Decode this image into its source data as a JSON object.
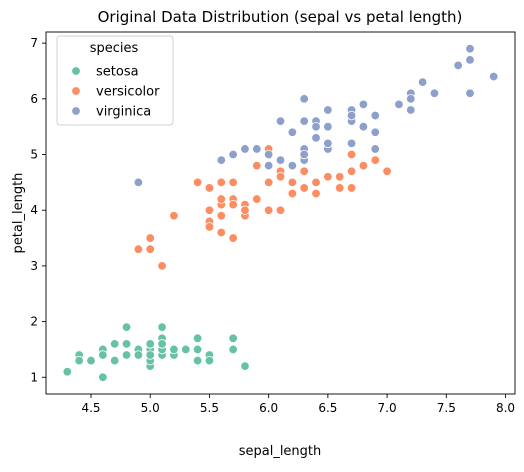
{
  "chart_data": {
    "type": "scatter",
    "title": "Original Data Distribution (sepal vs petal length)",
    "xlabel": "sepal_length",
    "ylabel": "petal_length",
    "xlim": [
      4.12,
      8.08
    ],
    "ylim": [
      0.7,
      7.2
    ],
    "xticks": [
      4.5,
      5.0,
      5.5,
      6.0,
      6.5,
      7.0,
      7.5,
      8.0
    ],
    "xtick_labels": [
      "4.5",
      "5.0",
      "5.5",
      "6.0",
      "6.5",
      "7.0",
      "7.5",
      "8.0"
    ],
    "yticks": [
      1,
      2,
      3,
      4,
      5,
      6,
      7
    ],
    "ytick_labels": [
      "1",
      "2",
      "3",
      "4",
      "5",
      "6",
      "7"
    ],
    "grid": false,
    "legend": {
      "title": "species",
      "placement": "top-left"
    },
    "series": [
      {
        "name": "setosa",
        "color": "#66c2a5",
        "points": [
          [
            5.1,
            1.4
          ],
          [
            4.9,
            1.4
          ],
          [
            4.7,
            1.3
          ],
          [
            4.6,
            1.5
          ],
          [
            5.0,
            1.4
          ],
          [
            5.4,
            1.7
          ],
          [
            4.6,
            1.4
          ],
          [
            5.0,
            1.5
          ],
          [
            4.4,
            1.4
          ],
          [
            4.9,
            1.5
          ],
          [
            5.4,
            1.5
          ],
          [
            4.8,
            1.6
          ],
          [
            4.8,
            1.4
          ],
          [
            4.3,
            1.1
          ],
          [
            5.8,
            1.2
          ],
          [
            5.7,
            1.5
          ],
          [
            5.4,
            1.3
          ],
          [
            5.1,
            1.4
          ],
          [
            5.7,
            1.7
          ],
          [
            5.1,
            1.5
          ],
          [
            5.4,
            1.7
          ],
          [
            5.1,
            1.5
          ],
          [
            4.6,
            1.0
          ],
          [
            5.1,
            1.7
          ],
          [
            4.8,
            1.9
          ],
          [
            5.0,
            1.6
          ],
          [
            5.0,
            1.6
          ],
          [
            5.2,
            1.5
          ],
          [
            5.2,
            1.4
          ],
          [
            4.7,
            1.6
          ],
          [
            4.8,
            1.6
          ],
          [
            5.4,
            1.5
          ],
          [
            5.2,
            1.5
          ],
          [
            5.5,
            1.4
          ],
          [
            4.9,
            1.5
          ],
          [
            5.0,
            1.2
          ],
          [
            5.5,
            1.3
          ],
          [
            4.9,
            1.4
          ],
          [
            4.4,
            1.3
          ],
          [
            5.1,
            1.5
          ],
          [
            5.0,
            1.3
          ],
          [
            4.5,
            1.3
          ],
          [
            4.4,
            1.3
          ],
          [
            5.0,
            1.6
          ],
          [
            5.1,
            1.9
          ],
          [
            4.8,
            1.4
          ],
          [
            5.1,
            1.6
          ],
          [
            4.6,
            1.4
          ],
          [
            5.3,
            1.5
          ],
          [
            5.0,
            1.4
          ]
        ]
      },
      {
        "name": "versicolor",
        "color": "#fc8d62",
        "points": [
          [
            7.0,
            4.7
          ],
          [
            6.4,
            4.5
          ],
          [
            6.9,
            4.9
          ],
          [
            5.5,
            4.0
          ],
          [
            6.5,
            4.6
          ],
          [
            5.7,
            4.5
          ],
          [
            6.3,
            4.7
          ],
          [
            4.9,
            3.3
          ],
          [
            6.6,
            4.6
          ],
          [
            5.2,
            3.9
          ],
          [
            5.0,
            3.5
          ],
          [
            5.9,
            4.2
          ],
          [
            6.0,
            4.0
          ],
          [
            6.1,
            4.7
          ],
          [
            5.6,
            3.6
          ],
          [
            6.7,
            4.4
          ],
          [
            5.6,
            4.5
          ],
          [
            5.8,
            4.1
          ],
          [
            6.2,
            4.5
          ],
          [
            5.6,
            3.9
          ],
          [
            5.9,
            4.8
          ],
          [
            6.1,
            4.0
          ],
          [
            6.3,
            4.9
          ],
          [
            6.1,
            4.7
          ],
          [
            6.4,
            4.3
          ],
          [
            6.6,
            4.4
          ],
          [
            6.8,
            4.8
          ],
          [
            6.7,
            5.0
          ],
          [
            6.0,
            4.5
          ],
          [
            5.7,
            3.5
          ],
          [
            5.5,
            3.8
          ],
          [
            5.5,
            3.7
          ],
          [
            5.8,
            3.9
          ],
          [
            6.0,
            5.1
          ],
          [
            5.4,
            4.5
          ],
          [
            6.0,
            4.5
          ],
          [
            6.7,
            4.7
          ],
          [
            6.3,
            4.4
          ],
          [
            5.6,
            4.1
          ],
          [
            5.5,
            4.0
          ],
          [
            5.5,
            4.4
          ],
          [
            6.1,
            4.6
          ],
          [
            5.8,
            4.0
          ],
          [
            5.0,
            3.3
          ],
          [
            5.6,
            4.2
          ],
          [
            5.7,
            4.2
          ],
          [
            5.7,
            4.2
          ],
          [
            6.2,
            4.3
          ],
          [
            5.1,
            3.0
          ],
          [
            5.7,
            4.1
          ]
        ]
      },
      {
        "name": "virginica",
        "color": "#8da0cb",
        "points": [
          [
            6.3,
            6.0
          ],
          [
            5.8,
            5.1
          ],
          [
            7.1,
            5.9
          ],
          [
            6.3,
            5.6
          ],
          [
            6.5,
            5.8
          ],
          [
            7.6,
            6.6
          ],
          [
            4.9,
            4.5
          ],
          [
            7.3,
            6.3
          ],
          [
            6.7,
            5.8
          ],
          [
            7.2,
            6.1
          ],
          [
            6.5,
            5.1
          ],
          [
            6.4,
            5.3
          ],
          [
            6.8,
            5.5
          ],
          [
            5.7,
            5.0
          ],
          [
            5.8,
            5.1
          ],
          [
            6.4,
            5.3
          ],
          [
            6.5,
            5.5
          ],
          [
            7.7,
            6.7
          ],
          [
            7.7,
            6.9
          ],
          [
            6.0,
            5.0
          ],
          [
            6.9,
            5.7
          ],
          [
            5.6,
            4.9
          ],
          [
            7.7,
            6.7
          ],
          [
            6.3,
            4.9
          ],
          [
            6.7,
            5.7
          ],
          [
            7.2,
            6.0
          ],
          [
            6.2,
            4.8
          ],
          [
            6.1,
            4.9
          ],
          [
            6.4,
            5.6
          ],
          [
            7.2,
            5.8
          ],
          [
            7.4,
            6.1
          ],
          [
            7.9,
            6.4
          ],
          [
            6.4,
            5.6
          ],
          [
            6.3,
            5.1
          ],
          [
            6.1,
            5.6
          ],
          [
            7.7,
            6.1
          ],
          [
            6.3,
            5.6
          ],
          [
            6.4,
            5.5
          ],
          [
            6.0,
            4.8
          ],
          [
            6.9,
            5.4
          ],
          [
            6.7,
            5.6
          ],
          [
            6.9,
            5.1
          ],
          [
            5.8,
            5.1
          ],
          [
            6.8,
            5.9
          ],
          [
            6.7,
            5.7
          ],
          [
            6.7,
            5.2
          ],
          [
            6.3,
            5.0
          ],
          [
            6.5,
            5.2
          ],
          [
            6.2,
            5.4
          ],
          [
            5.9,
            5.1
          ]
        ]
      }
    ]
  }
}
